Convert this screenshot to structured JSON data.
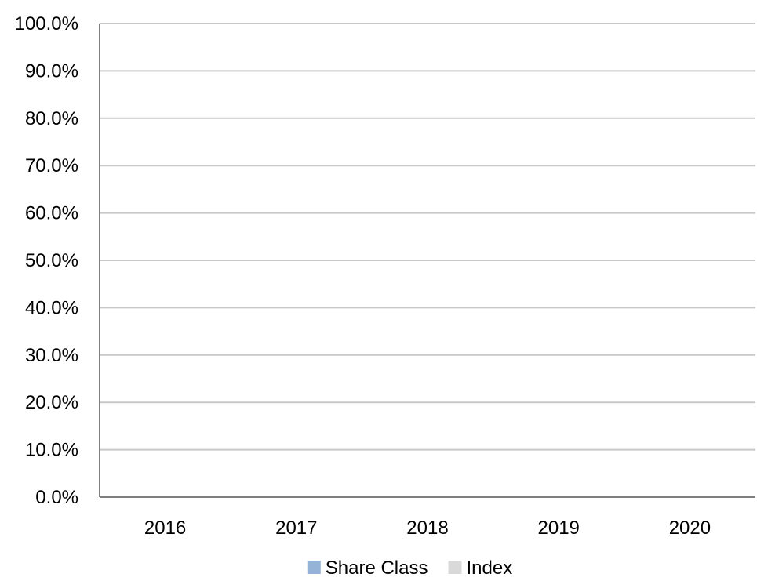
{
  "chart_data": {
    "type": "bar",
    "categories": [
      "2016",
      "2017",
      "2018",
      "2019",
      "2020"
    ],
    "series": [
      {
        "name": "Share Class",
        "color": "#95b3d7",
        "values": [
          null,
          null,
          null,
          null,
          null
        ]
      },
      {
        "name": "Index",
        "color": "#d9d9d9",
        "values": [
          null,
          null,
          null,
          null,
          null
        ]
      }
    ],
    "y_ticks": [
      "0.0%",
      "10.0%",
      "20.0%",
      "30.0%",
      "40.0%",
      "50.0%",
      "60.0%",
      "70.0%",
      "80.0%",
      "90.0%",
      "100.0%"
    ],
    "ylim": [
      0,
      1
    ],
    "grid": true,
    "legend_position": "bottom",
    "title": "",
    "xlabel": "",
    "ylabel": ""
  },
  "colors": {
    "gridline": "#c8c8c8",
    "axis": "#7f7f7f"
  }
}
